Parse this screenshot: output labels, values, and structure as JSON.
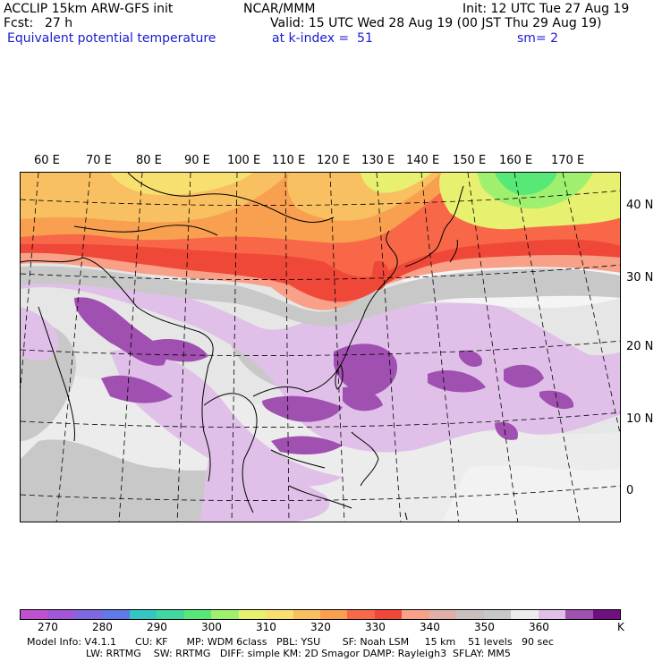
{
  "header": {
    "model_title": "ACCLIP 15km ARW-GFS init",
    "org": "NCAR/MMM",
    "init": "Init: 12 UTC Tue 27 Aug 19",
    "fcst_label": "Fcst:",
    "fcst_value": "27 h",
    "valid": "Valid: 15 UTC Wed 28 Aug 19 (00 JST Thu 29 Aug 19)",
    "field": "Equivalent potential temperature",
    "level": "at k-index =  51",
    "smooth": "sm= 2"
  },
  "map": {
    "lon_labels": [
      "60 E",
      "70 E",
      "80 E",
      "90 E",
      "100 E",
      "110 E",
      "120 E",
      "130 E",
      "140 E",
      "150 E",
      "160 E",
      "170 E"
    ],
    "lat_labels": [
      "40 N",
      "30 N",
      "20 N",
      "10 N",
      "0"
    ]
  },
  "colorbar": {
    "colors": [
      "#c050d0",
      "#a058d8",
      "#8068e0",
      "#6078e8",
      "#30c8c0",
      "#40d8a0",
      "#58e878",
      "#a0f070",
      "#e8f070",
      "#f8e070",
      "#f8c060",
      "#f8a050",
      "#f86848",
      "#f04838",
      "#f8a088",
      "#e0b0a8",
      "#c8c0bc",
      "#c8c8c8",
      "#ececec",
      "#e0c0e8",
      "#a050b0",
      "#701080"
    ],
    "ticks": [
      "270",
      "280",
      "290",
      "300",
      "310",
      "320",
      "330",
      "340",
      "350",
      "360"
    ],
    "unit": "K"
  },
  "model_info": {
    "line1": "Model Info: V4.1.1      CU: KF      MP: WDM 6class   PBL: YSU       SF: Noah LSM     15 km    51 levels   90 sec",
    "line2": "LW: RRTMG    SW: RRTMG   DIFF: simple KM: 2D Smagor DAMP: Rayleigh3  SFLAY: MM5"
  }
}
